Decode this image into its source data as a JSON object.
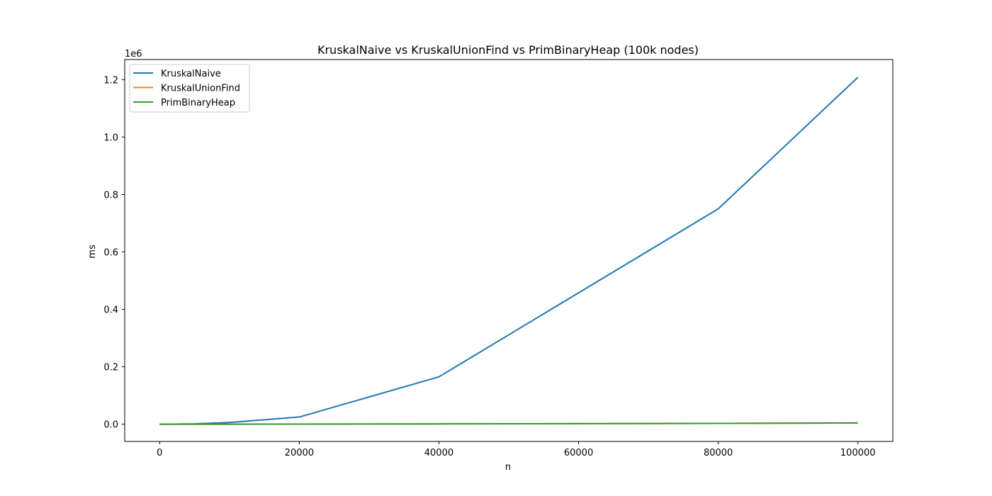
{
  "chart_data": {
    "type": "line",
    "title": "KruskalNaive vs KruskalUnionFind vs PrimBinaryHeap (100k nodes)",
    "xlabel": "n",
    "ylabel": "ms",
    "y_offset_label": "1e6",
    "xlim": [
      -5000,
      105000
    ],
    "ylim": [
      -0.06,
      1.27
    ],
    "y_scale_multiplier": 1000000,
    "x_ticks": [
      0,
      20000,
      40000,
      60000,
      80000,
      100000
    ],
    "x_tick_labels": [
      "0",
      "20000",
      "40000",
      "60000",
      "80000",
      "100000"
    ],
    "y_ticks": [
      0.0,
      0.2,
      0.4,
      0.6,
      0.8,
      1.0,
      1.2
    ],
    "y_tick_labels": [
      "0.0",
      "0.2",
      "0.4",
      "0.6",
      "0.8",
      "1.0",
      "1.2"
    ],
    "grid": false,
    "legend_position": "top-left",
    "x": [
      0,
      1000,
      5000,
      10000,
      20000,
      40000,
      80000,
      100000
    ],
    "series": [
      {
        "name": "KruskalNaive",
        "color": "#1f77b4",
        "values": [
          0.0,
          0.0001,
          0.0015,
          0.006,
          0.025,
          0.165,
          0.75,
          1.208
        ]
      },
      {
        "name": "KruskalUnionFind",
        "color": "#ff7f0e",
        "values": [
          0.0,
          0.0,
          0.0001,
          0.0002,
          0.0005,
          0.0012,
          0.0028,
          0.0045
        ]
      },
      {
        "name": "PrimBinaryHeap",
        "color": "#2ca02c",
        "values": [
          0.0,
          0.0,
          0.0001,
          0.0002,
          0.0005,
          0.0012,
          0.0028,
          0.0045
        ]
      }
    ]
  }
}
